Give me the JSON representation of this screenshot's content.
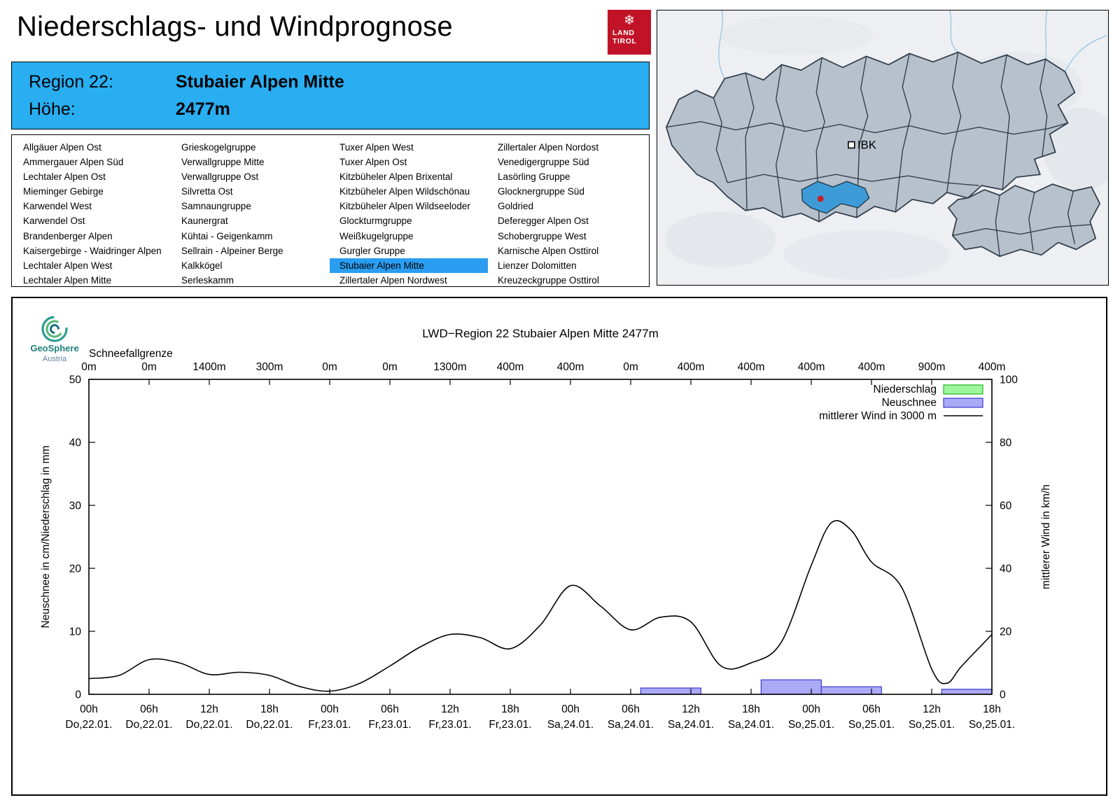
{
  "page": {
    "title": "Niederschlags- und Windprognose"
  },
  "logo": {
    "snowflake": "❄",
    "land": "LAND",
    "tirol": "TIROL"
  },
  "colors": {
    "header_blue": "#29aef2",
    "selected_blue": "#2b9df0",
    "land_tirol_red": "#c11327",
    "map_highlight": "#3d9cd8"
  },
  "region_header": {
    "region_label": "Region 22:",
    "region_name": "Stubaier Alpen Mitte",
    "altitude_label": "Höhe:",
    "altitude_value": "2477m"
  },
  "region_list": {
    "selected": "Stubaier Alpen Mitte",
    "columns": [
      [
        "Allgäuer Alpen Ost",
        "Ammergauer Alpen Süd",
        "Lechtaler Alpen Ost",
        "Mieminger Gebirge",
        "Karwendel West",
        "Karwendel Ost",
        "Brandenberger Alpen",
        "Kaisergebirge - Waidringer Alpen",
        "Lechtaler Alpen West",
        "Lechtaler Alpen Mitte"
      ],
      [
        "Grieskogelgruppe",
        "Verwallgruppe Mitte",
        "Verwallgruppe Ost",
        "Silvretta Ost",
        "Samnaungruppe",
        "Kaunergrat",
        "Kühtai - Geigenkamm",
        "Sellrain - Alpeiner Berge",
        "Kalkkögel",
        "Serleskamm"
      ],
      [
        "Tuxer Alpen West",
        "Tuxer Alpen Ost",
        "Kitzbüheler Alpen Brixental",
        "Kitzbüheler Alpen Wildschönau",
        "Kitzbüheler Alpen Wildseeloder",
        "Glockturmgruppe",
        "Weißkugelgruppe",
        "Gurgler Gruppe",
        "Stubaier Alpen Mitte",
        "Zillertaler Alpen Nordwest"
      ],
      [
        "Zillertaler Alpen Nordost",
        "Venedigergruppe Süd",
        "Lasörling Gruppe",
        "Glocknergruppe Süd",
        "Goldried",
        "Deferegger Alpen Ost",
        "Schobergruppe West",
        "Karnische Alpen Osttirol",
        "Lienzer Dolomitten",
        "Kreuzeckgruppe Osttirol"
      ]
    ]
  },
  "map": {
    "city_label": "IBK",
    "highlighted_region": "Stubaier Alpen Mitte"
  },
  "geosphere": {
    "name": "GeoSphere",
    "sub": "Austria"
  },
  "chart_data": {
    "type": "line+bar",
    "title": "LWD−Region 22 Stubaier Alpen Mitte 2477m",
    "snowline_label": "Schneefallgrenze",
    "snowline_values": [
      "0m",
      "0m",
      "1400m",
      "300m",
      "0m",
      "0m",
      "1300m",
      "400m",
      "400m",
      "0m",
      "400m",
      "400m",
      "400m",
      "400m",
      "900m",
      "400m"
    ],
    "x_hours_span": [
      0,
      90
    ],
    "x_ticks": [
      {
        "time": "00h",
        "date": "Do,22.01."
      },
      {
        "time": "06h",
        "date": "Do,22.01."
      },
      {
        "time": "12h",
        "date": "Do,22.01."
      },
      {
        "time": "18h",
        "date": "Do,22.01."
      },
      {
        "time": "00h",
        "date": "Fr,23.01."
      },
      {
        "time": "06h",
        "date": "Fr,23.01."
      },
      {
        "time": "12h",
        "date": "Fr,23.01."
      },
      {
        "time": "18h",
        "date": "Fr,23.01."
      },
      {
        "time": "00h",
        "date": "Sa,24.01."
      },
      {
        "time": "06h",
        "date": "Sa,24.01."
      },
      {
        "time": "12h",
        "date": "Sa,24.01."
      },
      {
        "time": "18h",
        "date": "Sa,24.01."
      },
      {
        "time": "00h",
        "date": "So,25.01."
      },
      {
        "time": "06h",
        "date": "So,25.01."
      },
      {
        "time": "12h",
        "date": "So,25.01."
      },
      {
        "time": "18h",
        "date": "So,25.01."
      }
    ],
    "ylabel_left": "Neuschnee in cm/Niederschlag in mm",
    "ylabel_right": "mittlerer Wind in km/h",
    "ylim_left": [
      0,
      50
    ],
    "ylim_right": [
      0,
      100
    ],
    "yticks_left": [
      0,
      10,
      20,
      30,
      40,
      50
    ],
    "yticks_right": [
      0,
      20,
      40,
      60,
      80,
      100
    ],
    "legend": [
      {
        "label": "Niederschlag",
        "type": "box",
        "fill": "#9cf69c",
        "stroke": "#28b428"
      },
      {
        "label": "Neuschnee",
        "type": "box",
        "fill": "#aaaaf6",
        "stroke": "#3a3ace"
      },
      {
        "label": "mittlerer Wind in 3000 m",
        "type": "line",
        "stroke": "#000000"
      }
    ],
    "colors": {
      "niederschlag_fill": "#9cf69c",
      "niederschlag_stroke": "#28b428",
      "neuschnee_fill": "#aaaaf6",
      "neuschnee_stroke": "#3a3ace"
    },
    "wind_series": {
      "name": "mittlerer Wind in 3000 m",
      "unit": "km/h",
      "hours": [
        0,
        3,
        6,
        9,
        12,
        15,
        18,
        21,
        24,
        27,
        30,
        33,
        36,
        39,
        42,
        45,
        48,
        51,
        54,
        57,
        60,
        63,
        66,
        69,
        72,
        74,
        76,
        78,
        81,
        84,
        85.5,
        87,
        90
      ],
      "values": [
        5,
        6,
        11,
        10,
        6.3,
        7,
        6,
        2.5,
        1,
        3.5,
        9,
        15,
        19,
        18,
        14.5,
        22,
        34.5,
        28,
        20.5,
        24.5,
        23,
        9,
        10,
        16.5,
        41,
        54.5,
        52,
        42,
        34,
        8,
        3.5,
        9,
        19
      ]
    },
    "neuschnee_bars": [
      {
        "start_hour": 55,
        "end_hour": 61,
        "cm": 1.0
      },
      {
        "start_hour": 67,
        "end_hour": 73,
        "cm": 2.3
      },
      {
        "start_hour": 73,
        "end_hour": 79,
        "cm": 1.2
      },
      {
        "start_hour": 85,
        "end_hour": 90,
        "cm": 0.8
      }
    ],
    "niederschlag_bars": []
  }
}
